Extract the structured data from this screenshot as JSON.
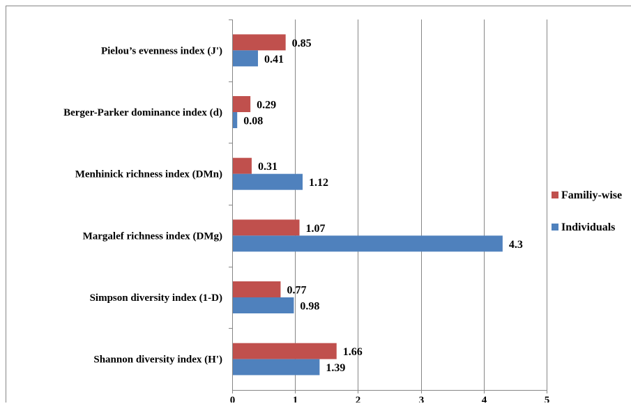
{
  "chart_data": {
    "type": "bar",
    "orientation": "horizontal",
    "title": "",
    "xlabel": "",
    "ylabel": "",
    "categories": [
      "Shannon diversity index (H')",
      "Simpson diversity index (1-D)",
      "Margalef richness index (DMg)",
      "Menhinick richness index (DMn)",
      "Berger-Parker dominance index (d)",
      "Pielou’s evenness index (J')"
    ],
    "series": [
      {
        "name": "Individuals",
        "color": "#4F81BD",
        "values": [
          1.39,
          0.98,
          4.3,
          1.12,
          0.08,
          0.41
        ]
      },
      {
        "name": "Familiy-wise",
        "color": "#C0504D",
        "values": [
          1.66,
          0.77,
          1.07,
          0.31,
          0.29,
          0.85
        ]
      }
    ],
    "data_labels": {
      "Individuals": [
        "1.39",
        "0.98",
        "4.3",
        "1.12",
        "0.08",
        "0.41"
      ],
      "Familiy-wise": [
        "1.66",
        "0.77",
        "1.07",
        "0.31",
        "0.29",
        "0.85"
      ]
    },
    "xlim": [
      0,
      5
    ],
    "x_ticks": [
      "0",
      "1",
      "2",
      "3",
      "4",
      "5"
    ],
    "grid": "vertical",
    "legend_position": "right"
  }
}
